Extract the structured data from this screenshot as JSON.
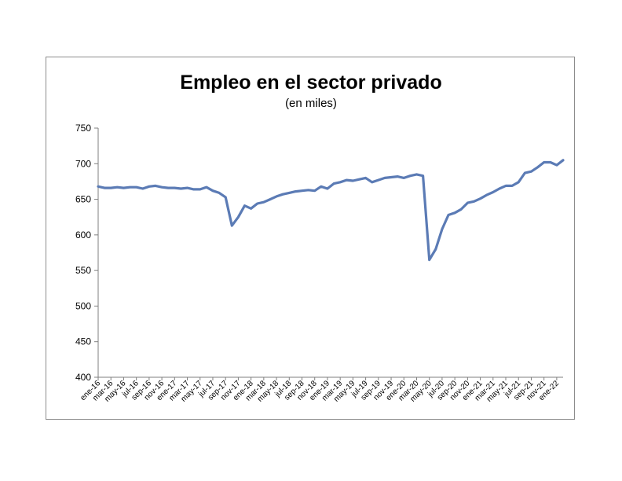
{
  "chart_data": {
    "type": "line",
    "title": "Empleo en el sector privado",
    "subtitle": "(en miles)",
    "xlabel": "",
    "ylabel": "",
    "ylim": [
      400,
      750
    ],
    "yticks": [
      400,
      450,
      500,
      550,
      600,
      650,
      700,
      750
    ],
    "grid": false,
    "line_color": "#5b7bb5",
    "tick_labels": [
      "ene-16",
      "mar-16",
      "may-16",
      "jul-16",
      "sep-16",
      "nov-16",
      "ene-17",
      "mar-17",
      "may-17",
      "jul-17",
      "sep-17",
      "nov-17",
      "ene-18",
      "mar-18",
      "may-18",
      "jul-18",
      "sep-18",
      "nov-18",
      "ene-19",
      "mar-19",
      "may-19",
      "jul-19",
      "sep-19",
      "nov-19",
      "ene-20",
      "mar-20",
      "may-20",
      "jul-20",
      "sep-20",
      "nov-20",
      "ene-21",
      "mar-21",
      "may-21",
      "jul-21",
      "sep-21",
      "nov-21",
      "ene-22"
    ],
    "series": [
      {
        "values": [
          668,
          666,
          666,
          667,
          666,
          667,
          667,
          665,
          668,
          669,
          667,
          666,
          666,
          665,
          666,
          664,
          664,
          667,
          662,
          659,
          653,
          613,
          625,
          641,
          637,
          644,
          646,
          650,
          654,
          657,
          659,
          661,
          662,
          663,
          662,
          668,
          665,
          672,
          674,
          677,
          676,
          678,
          680,
          674,
          677,
          680,
          681,
          682,
          680,
          683,
          685,
          683,
          565,
          580,
          608,
          628,
          631,
          636,
          645,
          647,
          651,
          656,
          660,
          665,
          669,
          669,
          674,
          687,
          689,
          695,
          702,
          702,
          698,
          705
        ]
      }
    ]
  }
}
